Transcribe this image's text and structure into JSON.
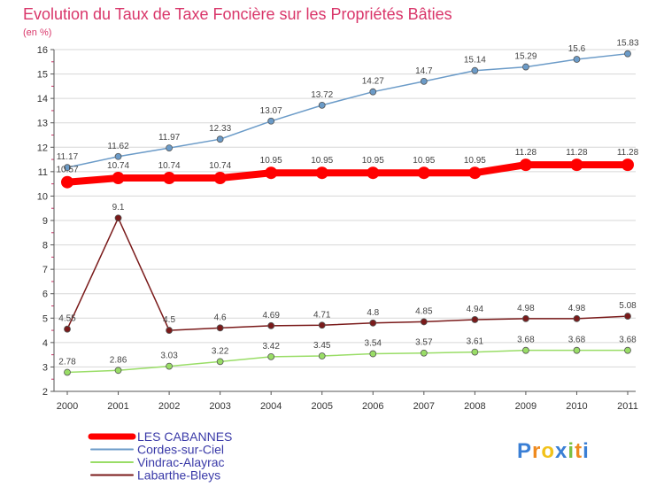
{
  "chart_data": {
    "type": "line",
    "title": "Evolution du Taux de Taxe Foncière sur les Propriétés Bâties",
    "ylabel": "(en %)",
    "xlabel": "",
    "ylim": [
      2,
      16
    ],
    "yticks": [
      2,
      3,
      4,
      5,
      6,
      7,
      8,
      9,
      10,
      11,
      12,
      13,
      14,
      15,
      16
    ],
    "categories": [
      "2000",
      "2001",
      "2002",
      "2003",
      "2004",
      "2005",
      "2006",
      "2007",
      "2008",
      "2009",
      "2010",
      "2011"
    ],
    "series": [
      {
        "name": "LES CABANNES",
        "color": "#ff0000",
        "values": [
          10.57,
          10.74,
          10.74,
          10.74,
          10.95,
          10.95,
          10.95,
          10.95,
          10.95,
          11.28,
          11.28,
          11.28
        ],
        "labels": [
          "10.57",
          "10.74",
          "10.74",
          "10.74",
          "10.95",
          "10.95",
          "10.95",
          "10.95",
          "10.95",
          "11.28",
          "11.28",
          "11.28"
        ]
      },
      {
        "name": "Cordes-sur-Ciel",
        "color": "#6b9bc8",
        "values": [
          11.17,
          11.62,
          11.97,
          12.33,
          13.07,
          13.72,
          14.27,
          14.7,
          15.14,
          15.29,
          15.6,
          15.83
        ],
        "labels": [
          "11.17",
          "11.62",
          "11.97",
          "12.33",
          "13.07",
          "13.72",
          "14.27",
          "14.7",
          "15.14",
          "15.29",
          "15.6",
          "15.83"
        ]
      },
      {
        "name": "Vindrac-Alayrac",
        "color": "#99dd66",
        "values": [
          2.78,
          2.86,
          3.03,
          3.22,
          3.42,
          3.45,
          3.54,
          3.57,
          3.61,
          3.68,
          3.68,
          3.68
        ],
        "labels": [
          "2.78",
          "2.86",
          "3.03",
          "3.22",
          "3.42",
          "3.45",
          "3.54",
          "3.57",
          "3.61",
          "3.68",
          "3.68",
          "3.68"
        ]
      },
      {
        "name": "Labarthe-Bleys",
        "color": "#7a1a1a",
        "values": [
          4.55,
          9.1,
          4.5,
          4.6,
          4.69,
          4.71,
          4.8,
          4.85,
          4.94,
          4.98,
          4.98,
          5.08
        ],
        "labels": [
          "4.55",
          "9.1",
          "4.5",
          "4.6",
          "4.69",
          "4.71",
          "4.8",
          "4.85",
          "4.94",
          "4.98",
          "4.98",
          "5.08"
        ]
      }
    ]
  },
  "logo": {
    "text": "Proxiti",
    "letters": [
      "P",
      "r",
      "o",
      "x",
      "i",
      "t",
      "i"
    ],
    "colors": [
      "#3a7fd5",
      "#ef8a1e",
      "#f2c21b",
      "#3a7fd5",
      "#7ac143",
      "#ef8a1e",
      "#3a7fd5"
    ]
  }
}
